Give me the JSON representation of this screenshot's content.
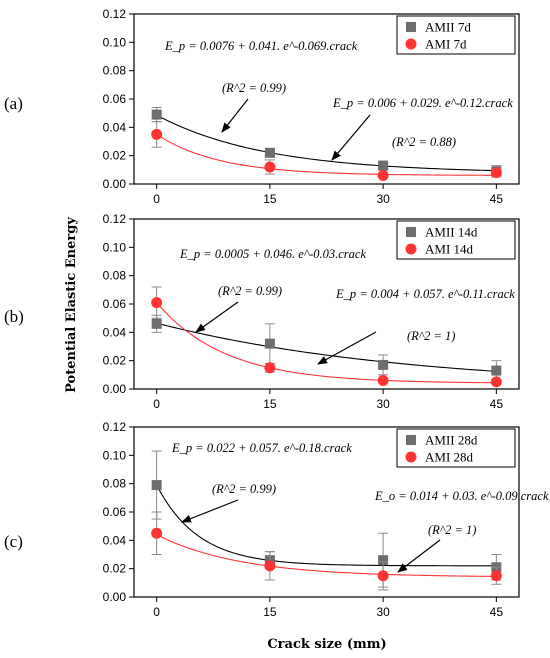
{
  "ylabel": "Potential Elastic Energy",
  "xlabel": "Crack size (mm)",
  "colors": {
    "series_a": "#6d6d6d",
    "series_b": "#ff3333",
    "fit_a": "#000000",
    "fit_b": "#ff3333",
    "error": "#8a8a8a"
  },
  "chart_data": [
    {
      "type": "scatter",
      "panel_label": "(a)",
      "xlabel": "",
      "ylabel": "",
      "x": [
        0,
        15,
        30,
        45
      ],
      "x_ticks": [
        "0",
        "15",
        "30",
        "45"
      ],
      "xlim": [
        -3,
        48
      ],
      "ylim": [
        0,
        0.12
      ],
      "y_ticks": [
        "0.00",
        "0.02",
        "0.04",
        "0.06",
        "0.08",
        "0.10",
        "0.12"
      ],
      "grid": false,
      "legend_position": "top-right",
      "series": [
        {
          "name": "AMII 7d",
          "marker": "square",
          "values": [
            0.049,
            0.022,
            0.013,
            0.009
          ],
          "errors": [
            0.005,
            0.003,
            0.002,
            0.004
          ],
          "fit": {
            "a": 0.0076,
            "b": 0.041,
            "k": 0.069
          }
        },
        {
          "name": "AMI 7d",
          "marker": "circle",
          "values": [
            0.035,
            0.012,
            0.006,
            0.008
          ],
          "errors": [
            0.009,
            0.005,
            0.001,
            0.003
          ],
          "fit": {
            "a": 0.006,
            "b": 0.029,
            "k": 0.12
          }
        }
      ],
      "annotations": [
        {
          "text": "E_p = 0.0076 + 0.041. e^-0.069.crack"
        },
        {
          "text": "(R^2 = 0.99)"
        },
        {
          "text": "E_p = 0.006 + 0.029. e^-0.12.crack"
        },
        {
          "text": "(R^2 = 0.88)"
        }
      ]
    },
    {
      "type": "scatter",
      "panel_label": "(b)",
      "xlabel": "",
      "ylabel": "",
      "x": [
        0,
        15,
        30,
        45
      ],
      "x_ticks": [
        "0",
        "15",
        "30",
        "45"
      ],
      "xlim": [
        -3,
        48
      ],
      "ylim": [
        0,
        0.12
      ],
      "y_ticks": [
        "0.00",
        "0.02",
        "0.04",
        "0.06",
        "0.08",
        "0.10",
        "0.12"
      ],
      "grid": false,
      "legend_position": "top-right",
      "series": [
        {
          "name": "AMII 14d",
          "marker": "square",
          "values": [
            0.046,
            0.032,
            0.017,
            0.013
          ],
          "errors": [
            0.006,
            0.014,
            0.007,
            0.007
          ],
          "fit": {
            "a": 0.0005,
            "b": 0.046,
            "k": 0.03
          }
        },
        {
          "name": "AMI 14d",
          "marker": "circle",
          "values": [
            0.061,
            0.015,
            0.006,
            0.005
          ],
          "errors": [
            0.011,
            0.003,
            0.001,
            0.001
          ],
          "fit": {
            "a": 0.004,
            "b": 0.057,
            "k": 0.11
          }
        }
      ],
      "annotations": [
        {
          "text": "E_p = 0.0005 + 0.046. e^-0.03.crack"
        },
        {
          "text": "(R^2 = 0.99)"
        },
        {
          "text": "E_p = 0.004 + 0.057. e^-0.11.crack"
        },
        {
          "text": "(R^2 = 1)"
        }
      ]
    },
    {
      "type": "scatter",
      "panel_label": "(c)",
      "xlabel": "",
      "ylabel": "",
      "x": [
        0,
        15,
        30,
        45
      ],
      "x_ticks": [
        "0",
        "15",
        "30",
        "45"
      ],
      "xlim": [
        -3,
        48
      ],
      "ylim": [
        0,
        0.12
      ],
      "y_ticks": [
        "0.00",
        "0.02",
        "0.04",
        "0.06",
        "0.08",
        "0.10",
        "0.12"
      ],
      "grid": false,
      "legend_position": "top-right",
      "series": [
        {
          "name": "AMII 28d",
          "marker": "square",
          "values": [
            0.079,
            0.026,
            0.026,
            0.021
          ],
          "errors": [
            0.024,
            0.006,
            0.019,
            0.009
          ],
          "fit": {
            "a": 0.022,
            "b": 0.057,
            "k": 0.18
          }
        },
        {
          "name": "AMI 28d",
          "marker": "circle",
          "values": [
            0.045,
            0.022,
            0.015,
            0.015
          ],
          "errors": [
            0.015,
            0.01,
            0.01,
            0.006
          ],
          "fit": {
            "a": 0.014,
            "b": 0.03,
            "k": 0.09
          }
        }
      ],
      "annotations": [
        {
          "text": "E_p = 0.022 + 0.057. e^-0.18.crack"
        },
        {
          "text": "(R^2 = 0.99)"
        },
        {
          "text": "E_o = 0.014 + 0.03. e^-0.09.crack"
        },
        {
          "text": "(R^2 = 1)"
        }
      ]
    }
  ]
}
